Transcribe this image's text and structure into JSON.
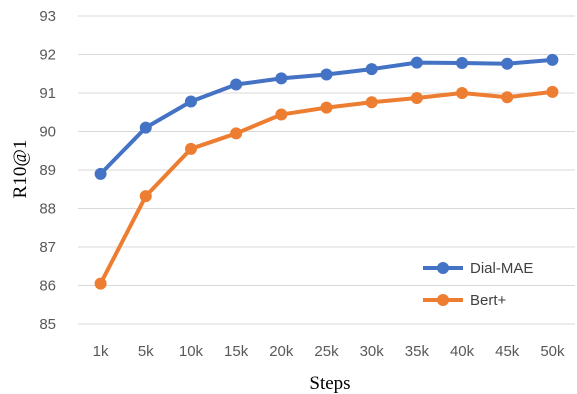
{
  "chart_data": {
    "type": "line",
    "title": "",
    "xlabel": "Steps",
    "ylabel": "R10@1",
    "categories": [
      "1k",
      "5k",
      "10k",
      "15k",
      "20k",
      "25k",
      "30k",
      "35k",
      "40k",
      "45k",
      "50k"
    ],
    "ylim": [
      85,
      93
    ],
    "yticks": [
      "85",
      "86",
      "87",
      "88",
      "89",
      "90",
      "91",
      "92",
      "93"
    ],
    "grid": "horizontal",
    "legend": "bottom-right",
    "series": [
      {
        "name": "Dial-MAE",
        "color": "#4472C4",
        "values": [
          88.9,
          90.1,
          90.78,
          91.22,
          91.38,
          91.48,
          91.62,
          91.79,
          91.78,
          91.76,
          91.86
        ]
      },
      {
        "name": "Bert+",
        "color": "#ED7D31",
        "values": [
          86.05,
          88.32,
          89.55,
          89.95,
          90.44,
          90.62,
          90.76,
          90.87,
          91.0,
          90.89,
          91.03
        ]
      }
    ]
  }
}
